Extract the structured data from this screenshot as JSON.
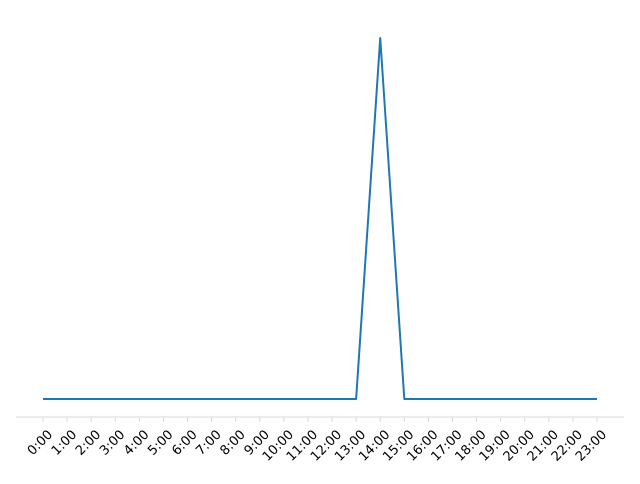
{
  "chart_data": {
    "type": "line",
    "title": "",
    "xlabel": "",
    "ylabel": "",
    "x": [
      "0:00",
      "1:00",
      "2:00",
      "3:00",
      "4:00",
      "5:00",
      "6:00",
      "7:00",
      "8:00",
      "9:00",
      "10:00",
      "11:00",
      "12:00",
      "13:00",
      "14:00",
      "15:00",
      "16:00",
      "17:00",
      "18:00",
      "19:00",
      "20:00",
      "21:00",
      "22:00",
      "23:00"
    ],
    "series": [
      {
        "values": [
          0,
          0,
          0,
          0,
          0,
          0,
          0,
          0,
          0,
          0,
          0,
          0,
          0,
          0,
          1,
          0,
          0,
          0,
          0,
          0,
          0,
          0,
          0,
          0
        ],
        "color": "#1f77b4"
      }
    ],
    "ylim": [
      -0.05,
      1.05
    ],
    "grid": false,
    "legend": "none",
    "colors": {
      "line": "#1f77b4",
      "axis": "#d9d9d9",
      "tick": "#d9d9d9"
    }
  }
}
